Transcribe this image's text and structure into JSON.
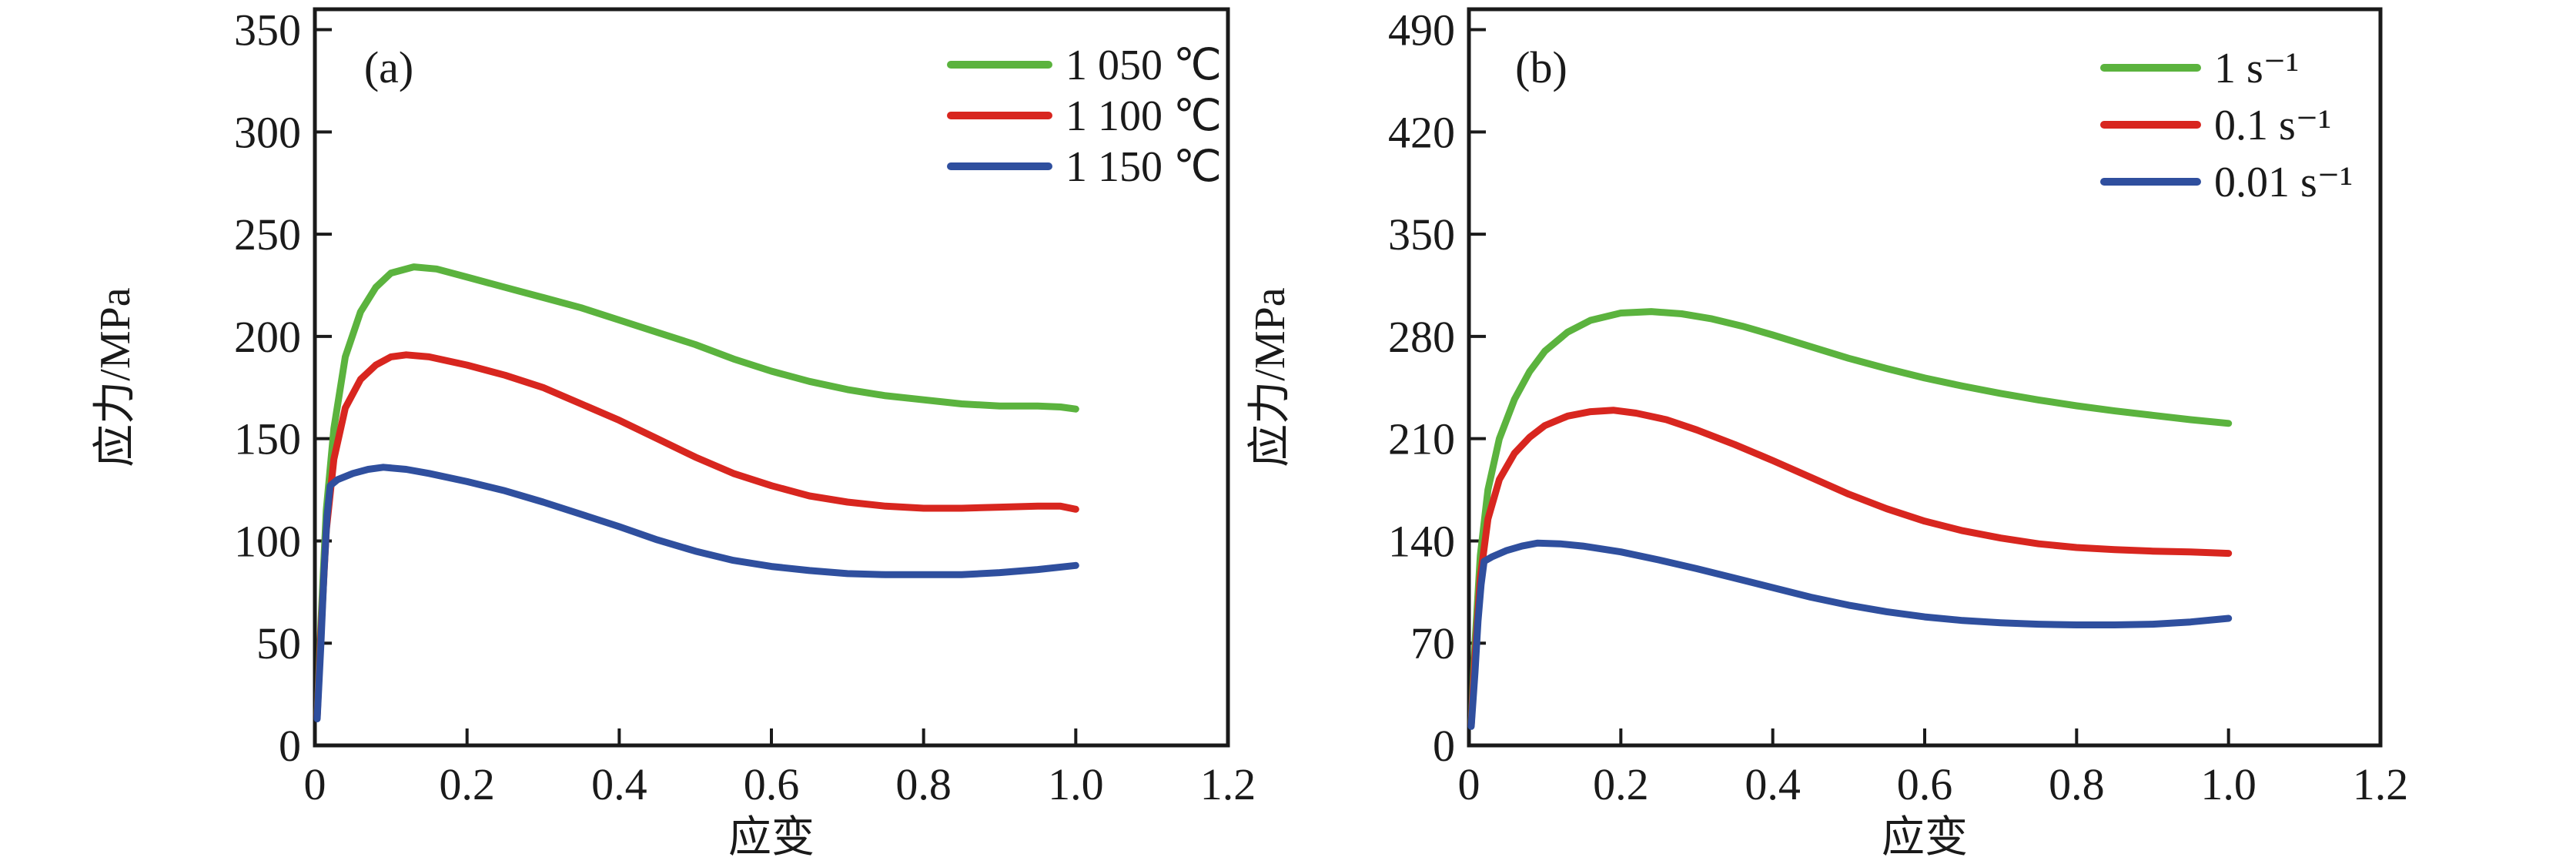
{
  "figure": {
    "background": "#ffffff",
    "axis_color": "#1a1a1a"
  },
  "chart_data": [
    {
      "type": "line",
      "panel_label": "(a)",
      "xlabel": "应变",
      "ylabel": "应力/MPa",
      "xlim": [
        0,
        1.2
      ],
      "ylim": [
        0,
        350
      ],
      "grid": false,
      "legend_position": "top-right-inside",
      "xtick_values": [
        0,
        0.2,
        0.4,
        0.6,
        0.8,
        1.0,
        1.2
      ],
      "xtick_labels": [
        "0",
        "0.2",
        "0.4",
        "0.6",
        "0.8",
        "1.0",
        "1.2"
      ],
      "ytick_values": [
        0,
        50,
        100,
        150,
        200,
        250,
        300,
        350
      ],
      "ytick_labels": [
        "0",
        "50",
        "100",
        "150",
        "200",
        "250",
        "300",
        "350"
      ],
      "series": [
        {
          "name": "1 050 ℃",
          "color": "#5bb33e",
          "points": [
            [
              0.003,
              15
            ],
            [
              0.008,
              60
            ],
            [
              0.015,
              115
            ],
            [
              0.025,
              155
            ],
            [
              0.04,
              190
            ],
            [
              0.06,
              212
            ],
            [
              0.08,
              224
            ],
            [
              0.1,
              231
            ],
            [
              0.13,
              234
            ],
            [
              0.16,
              233
            ],
            [
              0.2,
              229
            ],
            [
              0.25,
              224
            ],
            [
              0.3,
              219
            ],
            [
              0.35,
              214
            ],
            [
              0.4,
              208
            ],
            [
              0.45,
              202
            ],
            [
              0.5,
              196
            ],
            [
              0.55,
              189
            ],
            [
              0.6,
              183
            ],
            [
              0.65,
              178
            ],
            [
              0.7,
              174
            ],
            [
              0.75,
              171
            ],
            [
              0.8,
              169
            ],
            [
              0.85,
              167
            ],
            [
              0.9,
              166
            ],
            [
              0.95,
              166
            ],
            [
              0.98,
              165.5
            ],
            [
              1.0,
              164.5
            ]
          ]
        },
        {
          "name": "1 100 ℃",
          "color": "#d8261f",
          "points": [
            [
              0.003,
              14
            ],
            [
              0.008,
              55
            ],
            [
              0.015,
              105
            ],
            [
              0.025,
              140
            ],
            [
              0.04,
              165
            ],
            [
              0.06,
              179
            ],
            [
              0.08,
              186
            ],
            [
              0.1,
              190
            ],
            [
              0.12,
              191
            ],
            [
              0.15,
              190
            ],
            [
              0.2,
              186
            ],
            [
              0.25,
              181
            ],
            [
              0.3,
              175
            ],
            [
              0.35,
              167
            ],
            [
              0.4,
              159
            ],
            [
              0.45,
              150
            ],
            [
              0.5,
              141
            ],
            [
              0.55,
              133
            ],
            [
              0.6,
              127
            ],
            [
              0.65,
              122
            ],
            [
              0.7,
              119
            ],
            [
              0.75,
              117
            ],
            [
              0.8,
              116
            ],
            [
              0.85,
              116
            ],
            [
              0.9,
              116.5
            ],
            [
              0.95,
              117
            ],
            [
              0.98,
              117
            ],
            [
              1.0,
              115.5
            ]
          ]
        },
        {
          "name": "1 150 ℃",
          "color": "#2f4f9e",
          "points": [
            [
              0.003,
              13
            ],
            [
              0.008,
              50
            ],
            [
              0.012,
              85
            ],
            [
              0.016,
              112
            ],
            [
              0.02,
              127
            ],
            [
              0.03,
              130
            ],
            [
              0.05,
              133
            ],
            [
              0.07,
              135
            ],
            [
              0.09,
              136
            ],
            [
              0.12,
              135
            ],
            [
              0.15,
              133
            ],
            [
              0.2,
              129
            ],
            [
              0.25,
              124.5
            ],
            [
              0.3,
              119
            ],
            [
              0.35,
              113
            ],
            [
              0.4,
              107
            ],
            [
              0.45,
              100.5
            ],
            [
              0.5,
              95
            ],
            [
              0.55,
              90.5
            ],
            [
              0.6,
              87.5
            ],
            [
              0.65,
              85.5
            ],
            [
              0.7,
              84
            ],
            [
              0.75,
              83.5
            ],
            [
              0.8,
              83.5
            ],
            [
              0.85,
              83.5
            ],
            [
              0.9,
              84.5
            ],
            [
              0.95,
              86
            ],
            [
              1.0,
              88
            ]
          ]
        }
      ]
    },
    {
      "type": "line",
      "panel_label": "(b)",
      "xlabel": "应变",
      "ylabel": "应力/MPa",
      "xlim": [
        0,
        1.2
      ],
      "ylim": [
        0,
        490
      ],
      "grid": false,
      "legend_position": "top-right-inside",
      "xtick_values": [
        0,
        0.2,
        0.4,
        0.6,
        0.8,
        1.0,
        1.2
      ],
      "xtick_labels": [
        "0",
        "0.2",
        "0.4",
        "0.6",
        "0.8",
        "1.0",
        "1.2"
      ],
      "ytick_values": [
        0,
        70,
        140,
        210,
        280,
        350,
        420,
        490
      ],
      "ytick_labels": [
        "0",
        "70",
        "140",
        "210",
        "280",
        "350",
        "420",
        "490"
      ],
      "series": [
        {
          "name": "1 s⁻¹",
          "color": "#5bb33e",
          "points": [
            [
              0.003,
              15
            ],
            [
              0.008,
              70
            ],
            [
              0.015,
              130
            ],
            [
              0.025,
              175
            ],
            [
              0.04,
              210
            ],
            [
              0.06,
              237
            ],
            [
              0.08,
              256
            ],
            [
              0.1,
              270
            ],
            [
              0.13,
              283
            ],
            [
              0.16,
              291
            ],
            [
              0.2,
              296
            ],
            [
              0.24,
              297
            ],
            [
              0.28,
              295.5
            ],
            [
              0.32,
              292
            ],
            [
              0.36,
              287
            ],
            [
              0.4,
              281
            ],
            [
              0.45,
              273
            ],
            [
              0.5,
              265
            ],
            [
              0.55,
              258
            ],
            [
              0.6,
              251.5
            ],
            [
              0.65,
              246
            ],
            [
              0.7,
              241
            ],
            [
              0.75,
              236.5
            ],
            [
              0.8,
              232.5
            ],
            [
              0.85,
              229
            ],
            [
              0.9,
              226
            ],
            [
              0.95,
              223
            ],
            [
              1.0,
              220.5
            ]
          ]
        },
        {
          "name": "0.1 s⁻¹",
          "color": "#d8261f",
          "points": [
            [
              0.003,
              14
            ],
            [
              0.008,
              60
            ],
            [
              0.015,
              115
            ],
            [
              0.025,
              155
            ],
            [
              0.04,
              182
            ],
            [
              0.06,
              200
            ],
            [
              0.08,
              211
            ],
            [
              0.1,
              219
            ],
            [
              0.13,
              225.5
            ],
            [
              0.16,
              228.5
            ],
            [
              0.19,
              229.5
            ],
            [
              0.22,
              227.5
            ],
            [
              0.26,
              223
            ],
            [
              0.3,
              216
            ],
            [
              0.35,
              206
            ],
            [
              0.4,
              195
            ],
            [
              0.45,
              183.5
            ],
            [
              0.5,
              172
            ],
            [
              0.55,
              162
            ],
            [
              0.6,
              153.5
            ],
            [
              0.65,
              147
            ],
            [
              0.7,
              142
            ],
            [
              0.75,
              138
            ],
            [
              0.8,
              135.5
            ],
            [
              0.85,
              134
            ],
            [
              0.9,
              133
            ],
            [
              0.95,
              132.5
            ],
            [
              1.0,
              131.5
            ]
          ]
        },
        {
          "name": "0.01 s⁻¹",
          "color": "#2f4f9e",
          "points": [
            [
              0.003,
              13
            ],
            [
              0.008,
              50
            ],
            [
              0.012,
              85
            ],
            [
              0.016,
              110
            ],
            [
              0.02,
              126
            ],
            [
              0.03,
              129
            ],
            [
              0.05,
              133.5
            ],
            [
              0.07,
              136.5
            ],
            [
              0.09,
              138.5
            ],
            [
              0.12,
              138
            ],
            [
              0.15,
              136.5
            ],
            [
              0.2,
              132.5
            ],
            [
              0.25,
              127
            ],
            [
              0.3,
              121
            ],
            [
              0.35,
              114.5
            ],
            [
              0.4,
              108
            ],
            [
              0.45,
              101.5
            ],
            [
              0.5,
              96
            ],
            [
              0.55,
              91.5
            ],
            [
              0.6,
              88
            ],
            [
              0.65,
              85.5
            ],
            [
              0.7,
              84
            ],
            [
              0.75,
              83
            ],
            [
              0.8,
              82.5
            ],
            [
              0.85,
              82.5
            ],
            [
              0.9,
              83
            ],
            [
              0.95,
              84.5
            ],
            [
              1.0,
              87
            ]
          ]
        }
      ]
    }
  ]
}
